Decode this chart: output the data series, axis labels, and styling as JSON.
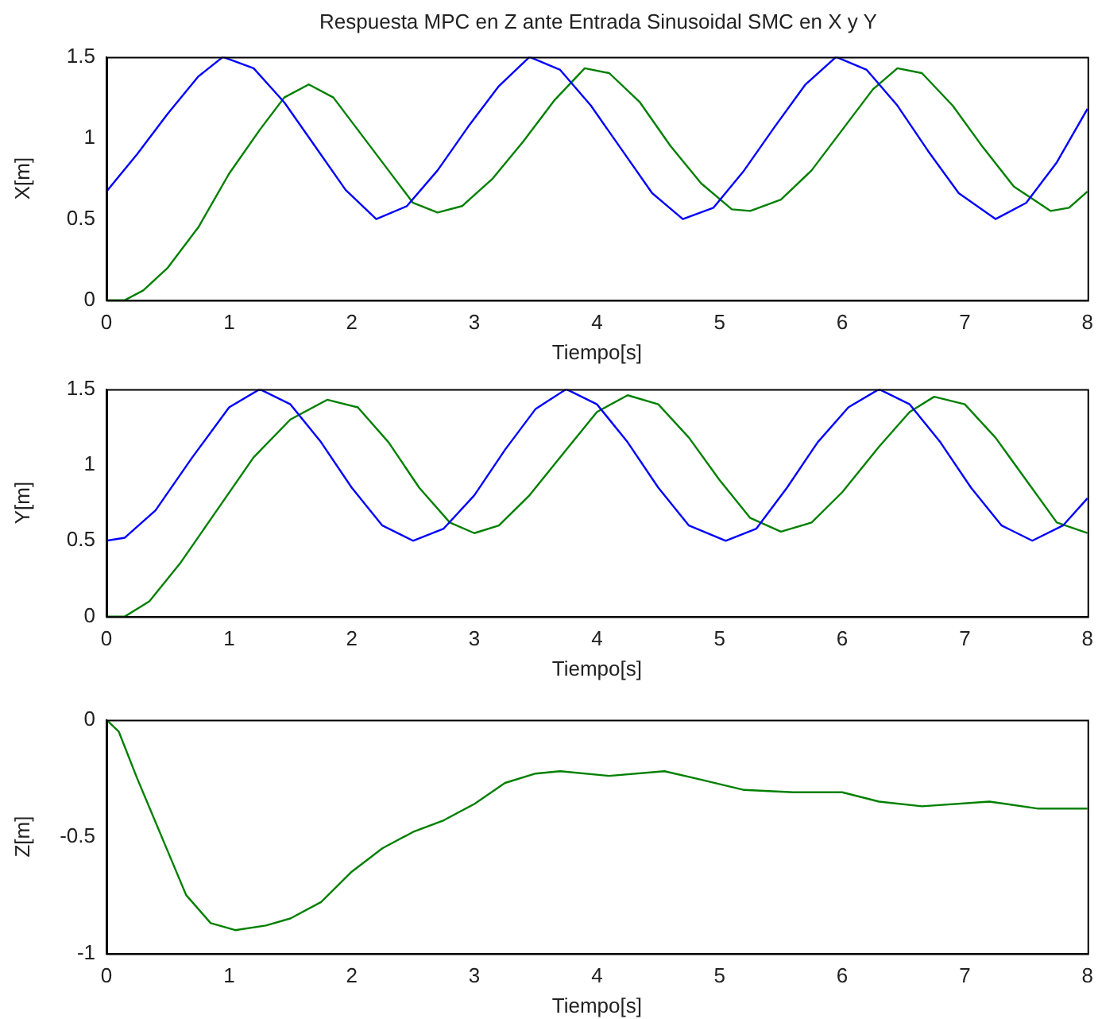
{
  "chart_data": [
    {
      "type": "line",
      "title": "Respuesta MPC en Z ante Entrada Sinusoidal SMC en X y Y",
      "xlabel": "Tiempo[s]",
      "ylabel": "X[m]",
      "xlim": [
        0,
        8
      ],
      "xticks": [
        0,
        1,
        2,
        3,
        4,
        5,
        6,
        7,
        8
      ],
      "ylim": [
        0,
        1.5
      ],
      "yticks": [
        0,
        0.5,
        1,
        1.5
      ],
      "grid": false,
      "legend": false,
      "marker": "none",
      "line_style": "solid",
      "series": [
        {
          "color": "#0000ff",
          "x": [
            0,
            0.25,
            0.5,
            0.75,
            0.95,
            1.2,
            1.45,
            1.7,
            1.95,
            2.2,
            2.45,
            2.7,
            2.95,
            3.2,
            3.45,
            3.7,
            3.95,
            4.2,
            4.45,
            4.7,
            4.95,
            5.2,
            5.45,
            5.7,
            5.95,
            6.2,
            6.45,
            6.7,
            6.95,
            7.25,
            7.5,
            7.75,
            8
          ],
          "values": [
            0.67,
            0.9,
            1.15,
            1.38,
            1.5,
            1.43,
            1.22,
            0.95,
            0.68,
            0.5,
            0.58,
            0.8,
            1.07,
            1.32,
            1.5,
            1.42,
            1.2,
            0.93,
            0.66,
            0.5,
            0.57,
            0.8,
            1.07,
            1.33,
            1.5,
            1.42,
            1.2,
            0.92,
            0.66,
            0.5,
            0.6,
            0.85,
            1.18
          ]
        },
        {
          "color": "#008000",
          "x": [
            0,
            0.15,
            0.3,
            0.5,
            0.75,
            1,
            1.25,
            1.45,
            1.65,
            1.85,
            2.1,
            2.35,
            2.5,
            2.7,
            2.9,
            3.15,
            3.4,
            3.65,
            3.9,
            4.1,
            4.35,
            4.6,
            4.85,
            5.1,
            5.25,
            5.5,
            5.75,
            6,
            6.25,
            6.45,
            6.65,
            6.9,
            7.15,
            7.4,
            7.7,
            7.85,
            8
          ],
          "values": [
            0,
            0,
            0.06,
            0.2,
            0.45,
            0.78,
            1.05,
            1.25,
            1.33,
            1.25,
            1.0,
            0.75,
            0.6,
            0.54,
            0.58,
            0.75,
            0.98,
            1.23,
            1.43,
            1.4,
            1.22,
            0.95,
            0.72,
            0.56,
            0.55,
            0.62,
            0.8,
            1.05,
            1.3,
            1.43,
            1.4,
            1.2,
            0.94,
            0.7,
            0.55,
            0.57,
            0.67
          ]
        }
      ]
    },
    {
      "type": "line",
      "xlabel": "Tiempo[s]",
      "ylabel": "Y[m]",
      "xlim": [
        0,
        8
      ],
      "xticks": [
        0,
        1,
        2,
        3,
        4,
        5,
        6,
        7,
        8
      ],
      "ylim": [
        0,
        1.5
      ],
      "yticks": [
        0,
        0.5,
        1,
        1.5
      ],
      "grid": false,
      "legend": false,
      "marker": "none",
      "line_style": "solid",
      "series": [
        {
          "color": "#0000ff",
          "x": [
            0,
            0.15,
            0.4,
            0.7,
            1,
            1.25,
            1.5,
            1.75,
            2,
            2.25,
            2.5,
            2.75,
            3,
            3.25,
            3.5,
            3.75,
            4,
            4.25,
            4.5,
            4.75,
            5.05,
            5.3,
            5.55,
            5.8,
            6.05,
            6.3,
            6.55,
            6.8,
            7.05,
            7.3,
            7.55,
            7.8,
            8
          ],
          "values": [
            0.5,
            0.52,
            0.7,
            1.05,
            1.38,
            1.5,
            1.4,
            1.15,
            0.85,
            0.6,
            0.5,
            0.58,
            0.8,
            1.1,
            1.37,
            1.5,
            1.4,
            1.15,
            0.85,
            0.6,
            0.5,
            0.58,
            0.85,
            1.15,
            1.38,
            1.5,
            1.4,
            1.15,
            0.85,
            0.6,
            0.5,
            0.6,
            0.78
          ]
        },
        {
          "color": "#008000",
          "x": [
            0,
            0.15,
            0.35,
            0.6,
            0.9,
            1.2,
            1.5,
            1.8,
            2.05,
            2.3,
            2.55,
            2.8,
            3,
            3.2,
            3.45,
            3.75,
            4,
            4.25,
            4.5,
            4.75,
            5,
            5.25,
            5.5,
            5.75,
            6,
            6.3,
            6.55,
            6.75,
            7,
            7.25,
            7.5,
            7.75,
            8
          ],
          "values": [
            0,
            0,
            0.1,
            0.35,
            0.7,
            1.05,
            1.3,
            1.43,
            1.38,
            1.15,
            0.85,
            0.62,
            0.55,
            0.6,
            0.8,
            1.1,
            1.35,
            1.46,
            1.4,
            1.18,
            0.9,
            0.65,
            0.56,
            0.62,
            0.82,
            1.12,
            1.35,
            1.45,
            1.4,
            1.18,
            0.9,
            0.62,
            0.55
          ]
        }
      ]
    },
    {
      "type": "line",
      "xlabel": "Tiempo[s]",
      "ylabel": "Z[m]",
      "xlim": [
        0,
        8
      ],
      "xticks": [
        0,
        1,
        2,
        3,
        4,
        5,
        6,
        7,
        8
      ],
      "ylim": [
        -1,
        0
      ],
      "yticks": [
        -1,
        -0.5,
        0
      ],
      "grid": false,
      "legend": false,
      "marker": "none",
      "line_style": "solid",
      "series": [
        {
          "color": "#008000",
          "x": [
            0,
            0.1,
            0.25,
            0.45,
            0.65,
            0.85,
            1.05,
            1.3,
            1.5,
            1.75,
            2,
            2.25,
            2.5,
            2.75,
            3,
            3.25,
            3.5,
            3.7,
            4.1,
            4.55,
            4.8,
            5.2,
            5.6,
            6,
            6.3,
            6.65,
            7.2,
            7.6,
            8
          ],
          "values": [
            0,
            -0.05,
            -0.25,
            -0.5,
            -0.75,
            -0.87,
            -0.9,
            -0.88,
            -0.85,
            -0.78,
            -0.65,
            -0.55,
            -0.48,
            -0.43,
            -0.36,
            -0.27,
            -0.23,
            -0.22,
            -0.24,
            -0.22,
            -0.25,
            -0.3,
            -0.31,
            -0.31,
            -0.35,
            -0.37,
            -0.35,
            -0.38,
            -0.38
          ]
        }
      ]
    }
  ]
}
